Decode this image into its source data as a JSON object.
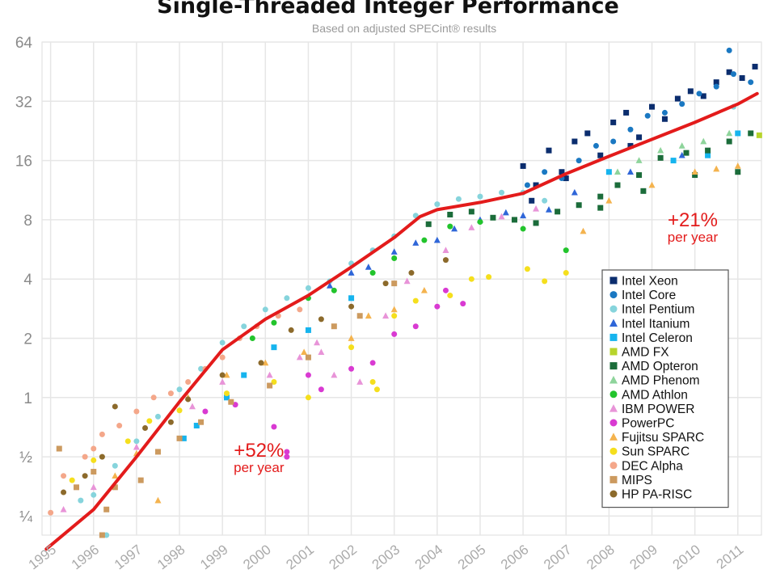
{
  "chart_data": {
    "type": "scatter",
    "title": "Single-Threaded Integer Performance",
    "subtitle": "Based on adjusted SPECint® results",
    "yscale": "log2",
    "ylim": [
      0.2,
      64
    ],
    "xlim": [
      1994.8,
      2011.55
    ],
    "y_ticks": [
      {
        "value": 64,
        "label": "64"
      },
      {
        "value": 32,
        "label": "32"
      },
      {
        "value": 16,
        "label": "16"
      },
      {
        "value": 8,
        "label": "8"
      },
      {
        "value": 4,
        "label": "4"
      },
      {
        "value": 2,
        "label": "2"
      },
      {
        "value": 1,
        "label": "1"
      },
      {
        "value": 0.5,
        "label": "½"
      },
      {
        "value": 0.25,
        "label": "¼"
      }
    ],
    "x_ticks": [
      "1995",
      "1996",
      "1997",
      "1998",
      "1999",
      "2000",
      "2001",
      "2002",
      "2003",
      "2004",
      "2005",
      "2006",
      "2007",
      "2008",
      "2009",
      "2010",
      "2011"
    ],
    "trend": {
      "name": "trend",
      "color": "#e31b1b",
      "points": [
        [
          1994.9,
          0.17
        ],
        [
          1996,
          0.27
        ],
        [
          1997,
          0.5
        ],
        [
          1998,
          0.95
        ],
        [
          1999,
          1.75
        ],
        [
          2000,
          2.5
        ],
        [
          2001,
          3.3
        ],
        [
          2002,
          4.6
        ],
        [
          2003,
          6.5
        ],
        [
          2003.6,
          8.3
        ],
        [
          2004,
          9.0
        ],
        [
          2005,
          9.8
        ],
        [
          2006,
          10.9
        ],
        [
          2007,
          13.7
        ],
        [
          2008,
          16.8
        ],
        [
          2009,
          20.5
        ],
        [
          2010,
          25.0
        ],
        [
          2011,
          31.0
        ],
        [
          2011.45,
          35.0
        ]
      ]
    },
    "annotations": [
      {
        "big": "+52%",
        "small": "per year",
        "x": 1999.85,
        "y": 0.5
      },
      {
        "big": "+21%",
        "small": "per year",
        "x": 2009.95,
        "y": 7.4
      }
    ],
    "series": [
      {
        "name": "Intel Xeon",
        "color": "#0b2d6e",
        "marker": "square",
        "points": [
          [
            2006,
            15
          ],
          [
            2006.3,
            12
          ],
          [
            2006.6,
            18
          ],
          [
            2006.9,
            14
          ],
          [
            2007.2,
            20
          ],
          [
            2007.5,
            22
          ],
          [
            2007.8,
            17
          ],
          [
            2008.1,
            25
          ],
          [
            2008.4,
            28
          ],
          [
            2008.7,
            21
          ],
          [
            2009,
            30
          ],
          [
            2009.3,
            26
          ],
          [
            2009.6,
            33
          ],
          [
            2009.9,
            36
          ],
          [
            2010.2,
            34
          ],
          [
            2010.5,
            40
          ],
          [
            2010.8,
            45
          ],
          [
            2011.1,
            42
          ],
          [
            2011.4,
            48
          ],
          [
            2006.2,
            10
          ],
          [
            2007,
            13
          ],
          [
            2008.5,
            19
          ]
        ]
      },
      {
        "name": "Intel Core",
        "color": "#1a78c2",
        "marker": "circle",
        "points": [
          [
            2006.1,
            12
          ],
          [
            2006.5,
            14
          ],
          [
            2006.9,
            13
          ],
          [
            2007.3,
            16
          ],
          [
            2007.7,
            19
          ],
          [
            2008.1,
            20
          ],
          [
            2008.5,
            23
          ],
          [
            2008.9,
            27
          ],
          [
            2009.3,
            28
          ],
          [
            2009.7,
            31
          ],
          [
            2010.1,
            35
          ],
          [
            2010.5,
            38
          ],
          [
            2010.9,
            44
          ],
          [
            2011.3,
            40
          ],
          [
            2010.8,
            58
          ]
        ]
      },
      {
        "name": "Intel Pentium",
        "color": "#86d4dc",
        "marker": "circle",
        "points": [
          [
            1996,
            0.32
          ],
          [
            1996.5,
            0.45
          ],
          [
            1997,
            0.6
          ],
          [
            1997.5,
            0.8
          ],
          [
            1998,
            1.1
          ],
          [
            1998.5,
            1.4
          ],
          [
            1999,
            1.9
          ],
          [
            1999.5,
            2.3
          ],
          [
            2000,
            2.8
          ],
          [
            2000.5,
            3.2
          ],
          [
            2001,
            3.6
          ],
          [
            2001.5,
            3.9
          ],
          [
            2002,
            4.8
          ],
          [
            2002.5,
            5.6
          ],
          [
            2003,
            6.6
          ],
          [
            2003.5,
            8.4
          ],
          [
            2004,
            9.6
          ],
          [
            2004.5,
            10.2
          ],
          [
            2005,
            10.5
          ],
          [
            2005.5,
            11
          ],
          [
            2006,
            11
          ],
          [
            2006.5,
            10
          ],
          [
            1996.3,
            0.2
          ],
          [
            1995.7,
            0.3
          ],
          [
            2010.9,
            30
          ]
        ]
      },
      {
        "name": "Intel Itanium",
        "color": "#2f66d8",
        "marker": "triangle",
        "points": [
          [
            2001.5,
            3.7
          ],
          [
            2002,
            4.3
          ],
          [
            2002.4,
            4.6
          ],
          [
            2003,
            5.5
          ],
          [
            2003.5,
            6.1
          ],
          [
            2004,
            6.3
          ],
          [
            2004.4,
            7.2
          ],
          [
            2005,
            8
          ],
          [
            2005.6,
            8.7
          ],
          [
            2006,
            8.4
          ],
          [
            2006.6,
            9
          ],
          [
            2007.2,
            11
          ],
          [
            2008.5,
            14
          ],
          [
            2009.7,
            17
          ]
        ]
      },
      {
        "name": "Intel Celeron",
        "color": "#16b4ee",
        "marker": "square",
        "points": [
          [
            1998.1,
            0.62
          ],
          [
            1998.4,
            0.72
          ],
          [
            1999.1,
            1.0
          ],
          [
            1999.5,
            1.3
          ],
          [
            2000.2,
            1.8
          ],
          [
            2001,
            2.2
          ],
          [
            2002,
            3.2
          ],
          [
            2008,
            14
          ],
          [
            2009.5,
            16
          ],
          [
            2010.3,
            17
          ],
          [
            2011,
            22
          ]
        ]
      },
      {
        "name": "AMD FX",
        "color": "#b7d42c",
        "marker": "square",
        "points": [
          [
            2011.5,
            21.5
          ]
        ]
      },
      {
        "name": "AMD Opteron",
        "color": "#1b6c3a",
        "marker": "square",
        "points": [
          [
            2003.8,
            7.6
          ],
          [
            2004.3,
            8.5
          ],
          [
            2004.8,
            8.8
          ],
          [
            2005.3,
            8.2
          ],
          [
            2005.8,
            8.0
          ],
          [
            2006.3,
            7.7
          ],
          [
            2006.8,
            8.8
          ],
          [
            2007.3,
            9.5
          ],
          [
            2007.8,
            10.5
          ],
          [
            2008.2,
            12
          ],
          [
            2008.7,
            13.5
          ],
          [
            2009.2,
            16.5
          ],
          [
            2009.8,
            17.5
          ],
          [
            2010.3,
            18
          ],
          [
            2010.8,
            20
          ],
          [
            2011.3,
            22
          ],
          [
            2007.8,
            9.2
          ],
          [
            2008.8,
            11.2
          ],
          [
            2010,
            13.5
          ],
          [
            2011,
            14
          ]
        ]
      },
      {
        "name": "AMD Phenom",
        "color": "#8ed49b",
        "marker": "triangle",
        "points": [
          [
            2008.2,
            14
          ],
          [
            2008.7,
            16
          ],
          [
            2009.2,
            18
          ],
          [
            2009.7,
            19
          ],
          [
            2010.2,
            20
          ],
          [
            2010.8,
            22
          ]
        ]
      },
      {
        "name": "AMD Athlon",
        "color": "#22c42c",
        "marker": "circle",
        "points": [
          [
            1999.7,
            2.0
          ],
          [
            2000.2,
            2.4
          ],
          [
            2001,
            3.2
          ],
          [
            2001.6,
            3.5
          ],
          [
            2002.5,
            4.3
          ],
          [
            2003,
            5.1
          ],
          [
            2003.7,
            6.3
          ],
          [
            2004.3,
            7.4
          ],
          [
            2005,
            7.8
          ],
          [
            2006,
            7.2
          ],
          [
            2007,
            5.6
          ]
        ]
      },
      {
        "name": "IBM POWER",
        "color": "#e894d8",
        "marker": "triangle",
        "points": [
          [
            1995.3,
            0.27
          ],
          [
            1996,
            0.35
          ],
          [
            1997,
            0.56
          ],
          [
            1998.3,
            0.9
          ],
          [
            1999,
            1.2
          ],
          [
            2000.1,
            1.3
          ],
          [
            2000.8,
            1.6
          ],
          [
            2001.3,
            1.7
          ],
          [
            2001.6,
            1.3
          ],
          [
            2002.8,
            2.6
          ],
          [
            2003.3,
            3.9
          ],
          [
            2004.2,
            5.6
          ],
          [
            2004.8,
            7.3
          ],
          [
            2005.5,
            8.3
          ],
          [
            2006.3,
            9.1
          ],
          [
            2002.2,
            1.2
          ],
          [
            2001.2,
            1.9
          ]
        ]
      },
      {
        "name": "PowerPC",
        "color": "#d93ad2",
        "marker": "circle",
        "points": [
          [
            1998.6,
            0.85
          ],
          [
            1999.3,
            0.92
          ],
          [
            2000.2,
            0.71
          ],
          [
            2000.5,
            0.53
          ],
          [
            2000.5,
            0.5
          ],
          [
            2001,
            1.3
          ],
          [
            2001.3,
            1.1
          ],
          [
            2002,
            1.4
          ],
          [
            2002.5,
            1.5
          ],
          [
            2003,
            2.1
          ],
          [
            2003.5,
            2.3
          ],
          [
            2004,
            2.9
          ],
          [
            2004.2,
            3.5
          ],
          [
            2004.6,
            3.0
          ]
        ]
      },
      {
        "name": "Fujitsu SPARC",
        "color": "#f4b34e",
        "marker": "triangle",
        "points": [
          [
            1996.5,
            0.4
          ],
          [
            1997,
            0.52
          ],
          [
            1997.5,
            0.3
          ],
          [
            1998.2,
            1.0
          ],
          [
            1999.1,
            1.3
          ],
          [
            2000,
            1.5
          ],
          [
            2000.9,
            1.7
          ],
          [
            2002,
            2.0
          ],
          [
            2002.4,
            2.6
          ],
          [
            2003,
            2.8
          ],
          [
            2003.7,
            3.5
          ],
          [
            2007.4,
            7.0
          ],
          [
            2008,
            10
          ],
          [
            2009,
            12
          ],
          [
            2010,
            14
          ],
          [
            2010.5,
            14.5
          ],
          [
            2011,
            15
          ]
        ]
      },
      {
        "name": "Sun SPARC",
        "color": "#f5df1d",
        "marker": "circle",
        "points": [
          [
            1995.5,
            0.38
          ],
          [
            1996,
            0.48
          ],
          [
            1996.8,
            0.6
          ],
          [
            1997.3,
            0.76
          ],
          [
            1998,
            0.86
          ],
          [
            1999.1,
            1.05
          ],
          [
            2000.2,
            1.2
          ],
          [
            2001,
            1.0
          ],
          [
            2002,
            1.8
          ],
          [
            2002.6,
            1.1
          ],
          [
            2002.5,
            1.2
          ],
          [
            2003,
            2.6
          ],
          [
            2003.5,
            3.1
          ],
          [
            2004.3,
            3.3
          ],
          [
            2004.8,
            4.0
          ],
          [
            2005.2,
            4.1
          ],
          [
            2006.1,
            4.5
          ],
          [
            2006.5,
            3.9
          ],
          [
            2007,
            4.3
          ]
        ]
      },
      {
        "name": "DEC Alpha",
        "color": "#f4a78a",
        "marker": "circle",
        "points": [
          [
            1995,
            0.26
          ],
          [
            1995.3,
            0.4
          ],
          [
            1995.8,
            0.5
          ],
          [
            1996.2,
            0.65
          ],
          [
            1996.6,
            0.72
          ],
          [
            1997,
            0.85
          ],
          [
            1997.4,
            1.0
          ],
          [
            1997.8,
            1.05
          ],
          [
            1998.2,
            1.2
          ],
          [
            1998.6,
            1.4
          ],
          [
            1999,
            1.6
          ],
          [
            1999.4,
            2.0
          ],
          [
            1999.8,
            2.3
          ],
          [
            2000.3,
            2.6
          ],
          [
            2000.8,
            2.8
          ],
          [
            1996,
            0.55
          ]
        ]
      },
      {
        "name": "MIPS",
        "color": "#cc9a5f",
        "marker": "square",
        "points": [
          [
            1995.2,
            0.55
          ],
          [
            1995.6,
            0.35
          ],
          [
            1996,
            0.42
          ],
          [
            1996.3,
            0.27
          ],
          [
            1996.5,
            0.35
          ],
          [
            1997.1,
            0.38
          ],
          [
            1997.5,
            0.53
          ],
          [
            1998,
            0.62
          ],
          [
            1998.5,
            0.75
          ],
          [
            1999.2,
            0.95
          ],
          [
            2000.1,
            1.15
          ],
          [
            2001,
            1.6
          ],
          [
            2001.6,
            2.3
          ],
          [
            2002.2,
            2.6
          ],
          [
            2003,
            3.8
          ],
          [
            1996.2,
            0.2
          ]
        ]
      },
      {
        "name": "HP PA-RISC",
        "color": "#8c6a2b",
        "marker": "circle",
        "points": [
          [
            1995.3,
            0.33
          ],
          [
            1995.8,
            0.4
          ],
          [
            1996.2,
            0.5
          ],
          [
            1996.5,
            0.9
          ],
          [
            1997.2,
            0.7
          ],
          [
            1997.8,
            0.75
          ],
          [
            1998.2,
            0.98
          ],
          [
            1999,
            1.3
          ],
          [
            1999.9,
            1.5
          ],
          [
            2000.6,
            2.2
          ],
          [
            2001.3,
            2.5
          ],
          [
            2002,
            2.9
          ],
          [
            2002.8,
            3.8
          ],
          [
            2003.4,
            4.3
          ],
          [
            2004.2,
            5.0
          ]
        ]
      }
    ]
  }
}
